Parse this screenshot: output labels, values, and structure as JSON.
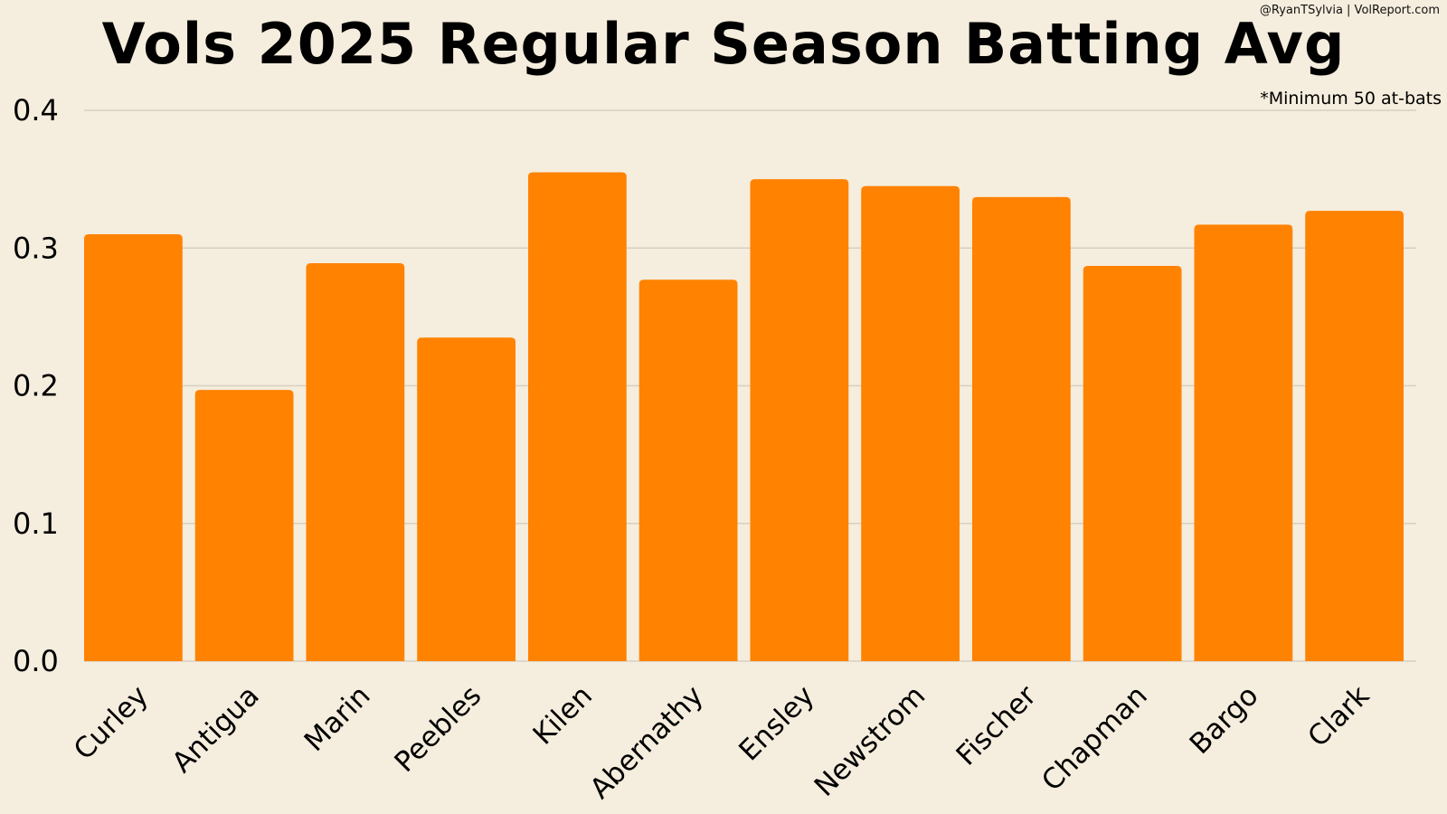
{
  "header": {
    "title": "Vols 2025 Regular Season Batting Avg",
    "credit": "@RyanTSylvia | VolReport.com",
    "note": "*Minimum 50 at-bats"
  },
  "colors": {
    "background": "#f5eddd",
    "bar": "#ff8200",
    "grid": "#d6d0c4",
    "text": "#000000"
  },
  "chart_data": {
    "type": "bar",
    "title": "Vols 2025 Regular Season Batting Avg",
    "xlabel": "",
    "ylabel": "",
    "ylim": [
      0,
      0.4
    ],
    "yticks": [
      "0.0",
      "0.1",
      "0.2",
      "0.3",
      "0.4"
    ],
    "grid": true,
    "categories": [
      "Curley",
      "Antigua",
      "Marin",
      "Peebles",
      "Kilen",
      "Abernathy",
      "Ensley",
      "Newstrom",
      "Fischer",
      "Chapman",
      "Bargo",
      "Clark"
    ],
    "values": [
      0.31,
      0.197,
      0.289,
      0.235,
      0.355,
      0.277,
      0.35,
      0.345,
      0.337,
      0.287,
      0.317,
      0.327
    ]
  }
}
